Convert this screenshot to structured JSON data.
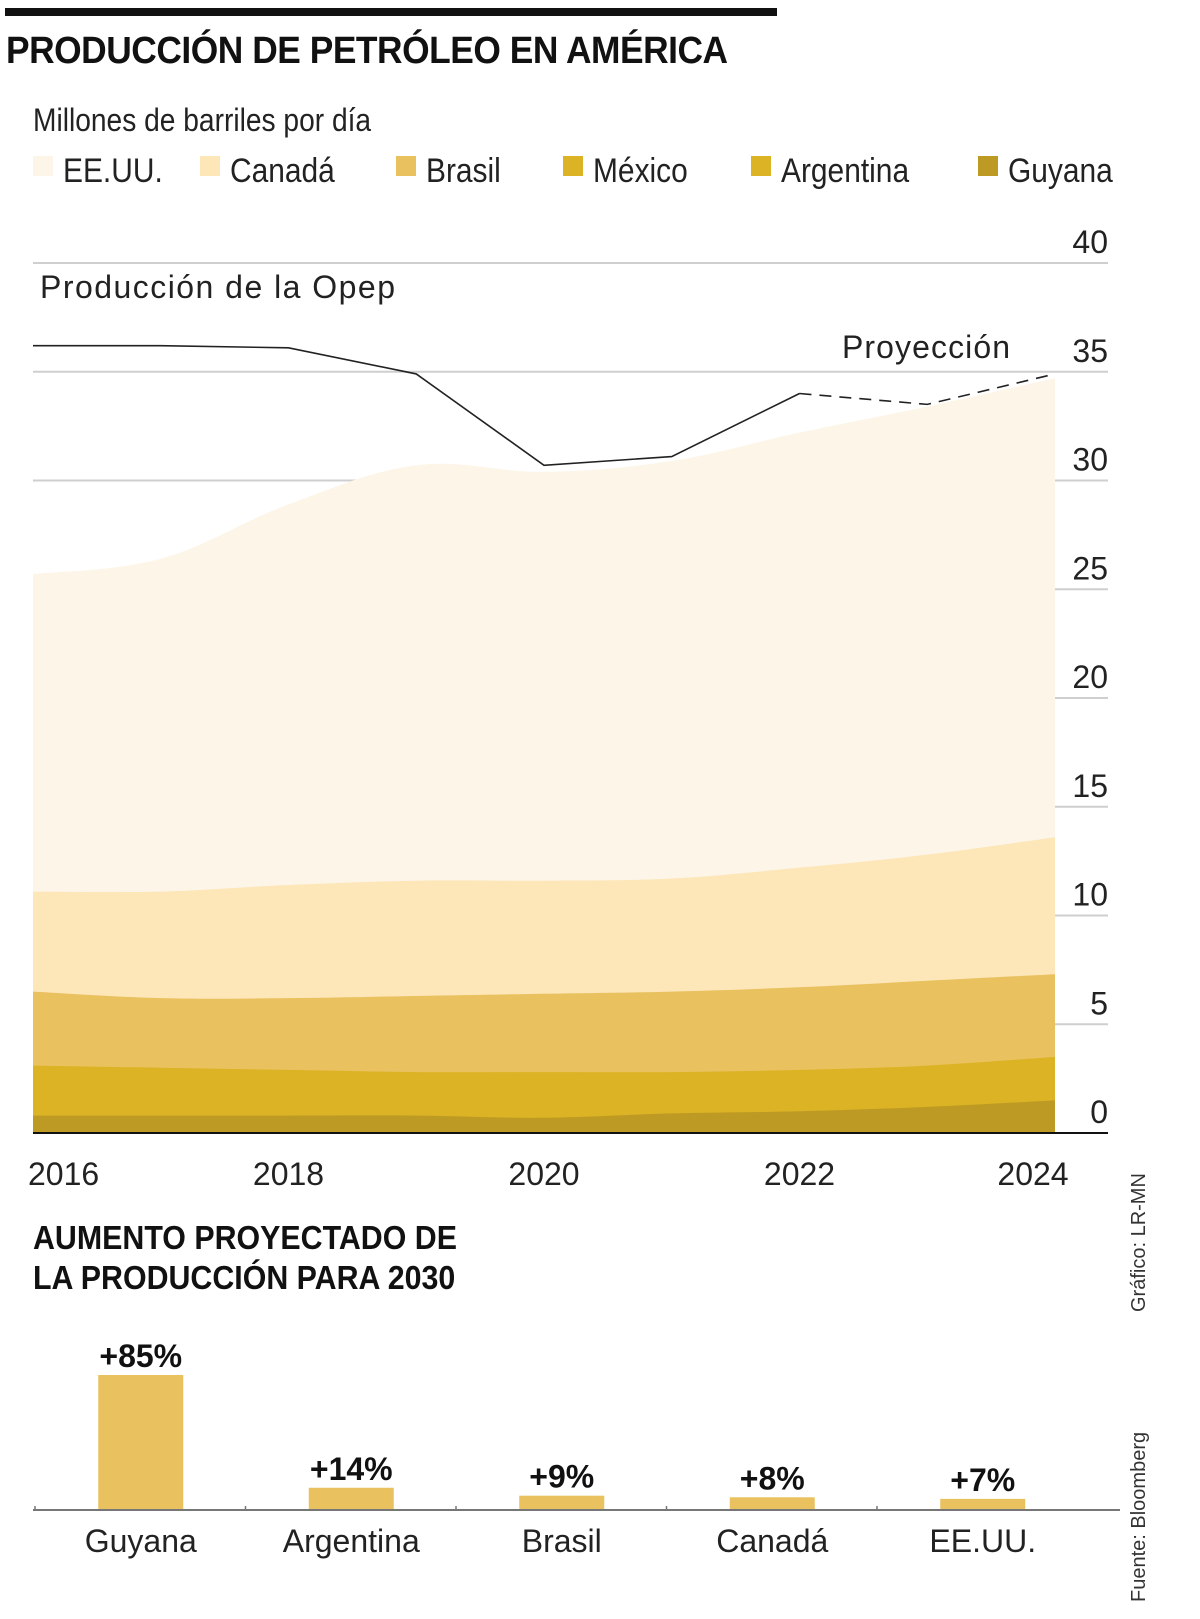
{
  "header": {
    "title": "PRODUCCIÓN DE PETRÓLEO EN AMÉRICA",
    "unit": "Millones de barriles por día"
  },
  "legend": [
    {
      "label": "EE.UU.",
      "color": "#fdf5e8"
    },
    {
      "label": "Canadá",
      "color": "#fde6b8"
    },
    {
      "label": "Brasil",
      "color": "#e9c15e"
    },
    {
      "label": "México",
      "color": "#dcb324"
    },
    {
      "label": "Argentina",
      "color": "#dcb324"
    },
    {
      "label": "Guyana",
      "color": "#bd9a24"
    }
  ],
  "annotations": {
    "opep_label": "Producción de la Opep",
    "projection_label": "Proyección"
  },
  "bar_section": {
    "title_line1": "AUMENTO PROYECTADO DE",
    "title_line2": "LA PRODUCCIÓN PARA 2030"
  },
  "credits": {
    "graphic": "Gráfico: LR-MN",
    "source": "Fuente: Bloomberg"
  },
  "chart_data": [
    {
      "type": "area",
      "title": "PRODUCCIÓN DE PETRÓLEO EN AMÉRICA",
      "ylabel": "Millones de barriles por día",
      "xlabel": "",
      "stacked": true,
      "x": [
        2016,
        2017,
        2018,
        2019,
        2020,
        2021,
        2022,
        2023,
        2024
      ],
      "x_tick_labels": [
        "2016",
        "2018",
        "2020",
        "2022",
        "2024"
      ],
      "y_ticks": [
        0,
        5,
        10,
        15,
        20,
        25,
        30,
        35,
        40
      ],
      "ylim": [
        0,
        40
      ],
      "grid": true,
      "y_axis_side": "right",
      "legend_position": "top",
      "series_cumulative_top": [
        {
          "name": "Guyana",
          "color": "#bd9a24",
          "values": [
            0.8,
            0.8,
            0.8,
            0.8,
            0.7,
            0.9,
            1.0,
            1.2,
            1.5
          ]
        },
        {
          "name": "Argentina",
          "color": "#dcb324",
          "values": [
            3.0,
            2.9,
            2.8,
            2.7,
            2.7,
            2.7,
            2.8,
            3.0,
            3.4
          ]
        },
        {
          "name": "México",
          "color": "#dcb324",
          "values": [
            3.1,
            3.0,
            2.9,
            2.8,
            2.8,
            2.8,
            2.9,
            3.1,
            3.5
          ]
        },
        {
          "name": "Brasil",
          "color": "#e9c15e",
          "values": [
            6.5,
            6.2,
            6.2,
            6.3,
            6.4,
            6.5,
            6.7,
            7.0,
            7.3
          ]
        },
        {
          "name": "Canadá",
          "color": "#fde6b8",
          "values": [
            11.1,
            11.1,
            11.4,
            11.6,
            11.6,
            11.7,
            12.2,
            12.8,
            13.6
          ]
        },
        {
          "name": "EE.UU.",
          "color": "#fdf5e8",
          "values": [
            25.7,
            26.4,
            28.9,
            30.7,
            30.4,
            30.9,
            32.2,
            33.4,
            34.7
          ]
        }
      ],
      "line_series": {
        "name": "Producción de la Opep",
        "color": "#222222",
        "values": [
          36.2,
          36.2,
          36.1,
          34.9,
          30.7,
          31.1,
          34.0,
          33.5,
          34.9
        ],
        "projection_from_index": 6
      }
    },
    {
      "type": "bar",
      "title": "AUMENTO PROYECTADO DE LA PRODUCCIÓN PARA 2030",
      "categories": [
        "Guyana",
        "Argentina",
        "Brasil",
        "Canadá",
        "EE.UU."
      ],
      "values": [
        85,
        14,
        9,
        8,
        7
      ],
      "value_labels": [
        "+85%",
        "+14%",
        "+9%",
        "+8%",
        "+7%"
      ],
      "unit": "%",
      "color": "#e9c15e",
      "ylim": [
        0,
        85
      ]
    }
  ]
}
